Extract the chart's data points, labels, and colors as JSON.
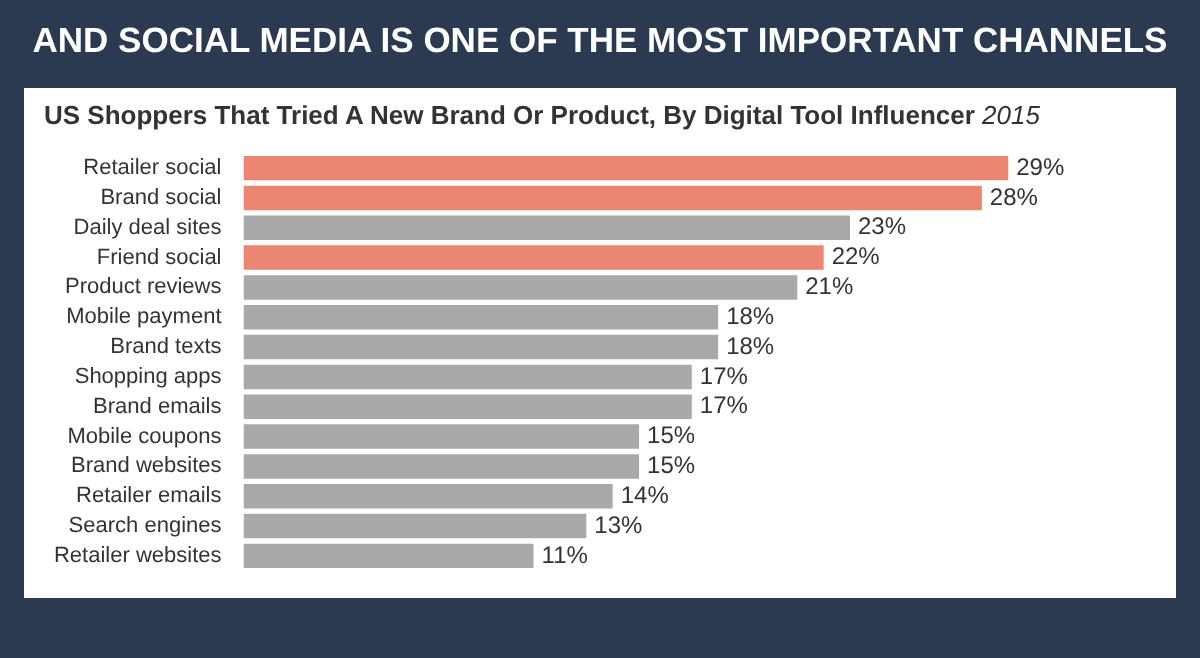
{
  "chart_data": {
    "type": "bar",
    "orientation": "horizontal",
    "title": "AND SOCIAL MEDIA IS ONE OF THE MOST IMPORTANT CHANNELS",
    "subtitle": "US Shoppers That Tried A New Brand Or Product, By Digital Tool Influencer 2015",
    "categories": [
      "Retailer social",
      "Brand social",
      "Daily deal sites",
      "Friend social",
      "Product reviews",
      "Mobile payment",
      "Brand texts",
      "Shopping apps",
      "Brand emails",
      "Mobile coupons",
      "Brand websites",
      "Retailer emails",
      "Search engines",
      "Retailer websites"
    ],
    "values": [
      29,
      28,
      23,
      22,
      21,
      18,
      18,
      17,
      17,
      15,
      15,
      14,
      13,
      11
    ],
    "colors": [
      "#ea8672",
      "#ea8672",
      "#a9a9a9",
      "#ea8672",
      "#a9a9a9",
      "#a9a9a9",
      "#a9a9a9",
      "#a9a9a9",
      "#a9a9a9",
      "#a9a9a9",
      "#a9a9a9",
      "#a9a9a9",
      "#a9a9a9",
      "#a9a9a9"
    ],
    "value_labels": [
      "29%",
      "28%",
      "23%",
      "22%",
      "21%",
      "18%",
      "18%",
      "17%",
      "17%",
      "15%",
      "15%",
      "14%",
      "13%",
      "11%"
    ],
    "legend": false
  }
}
